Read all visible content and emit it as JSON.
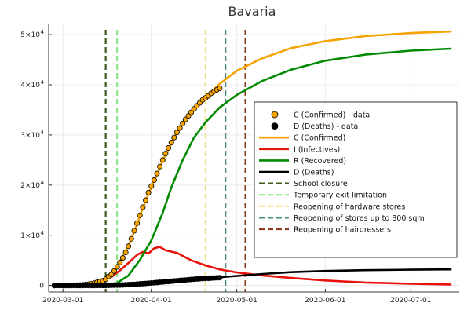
{
  "chart_data": {
    "type": "line",
    "title": "Bavaria",
    "xlabel": "",
    "ylabel": "",
    "grid": true,
    "legend_position": "right",
    "x_range": [
      "2020-02-25",
      "2020-07-18"
    ],
    "y_range": [
      -1300,
      52200
    ],
    "x_ticks": [
      {
        "date": "2020-03-01",
        "label": "2020-03-01"
      },
      {
        "date": "2020-04-01",
        "label": "2020-04-01"
      },
      {
        "date": "2020-05-01",
        "label": "2020-05-01"
      },
      {
        "date": "2020-06-01",
        "label": "2020-06-01"
      },
      {
        "date": "2020-07-01",
        "label": "2020-07-01"
      }
    ],
    "y_ticks": [
      {
        "value": 0,
        "mantissa": "0",
        "exponent": ""
      },
      {
        "value": 10000,
        "mantissa": "1×10",
        "exponent": "4"
      },
      {
        "value": 20000,
        "mantissa": "2×10",
        "exponent": "4"
      },
      {
        "value": 30000,
        "mantissa": "3×10",
        "exponent": "4"
      },
      {
        "value": 40000,
        "mantissa": "4×10",
        "exponent": "4"
      },
      {
        "value": 50000,
        "mantissa": "5×10",
        "exponent": "4"
      }
    ],
    "vlines": [
      {
        "name": "School closure",
        "date": "2020-03-16",
        "color": "#3d5a1e"
      },
      {
        "name": "Temporary exit limitation",
        "date": "2020-03-20",
        "color": "#8ee58a"
      },
      {
        "name": "Reopening of hardware stores",
        "date": "2020-04-20",
        "color": "#f0e08a"
      },
      {
        "name": "Reopening of stores up to 800 sqm",
        "date": "2020-04-27",
        "color": "#4a8a86"
      },
      {
        "name": "Reopening of hairdressers",
        "date": "2020-05-04",
        "color": "#8c3a22"
      }
    ],
    "scatter_series": [
      {
        "name": "C (Confirmed) - data",
        "color": "#f5a300",
        "points": [
          [
            "2020-02-27",
            0
          ],
          [
            "2020-02-28",
            0
          ],
          [
            "2020-02-29",
            0
          ],
          [
            "2020-03-01",
            0
          ],
          [
            "2020-03-02",
            5
          ],
          [
            "2020-03-03",
            10
          ],
          [
            "2020-03-04",
            20
          ],
          [
            "2020-03-05",
            40
          ],
          [
            "2020-03-06",
            60
          ],
          [
            "2020-03-07",
            90
          ],
          [
            "2020-03-08",
            130
          ],
          [
            "2020-03-09",
            180
          ],
          [
            "2020-03-10",
            250
          ],
          [
            "2020-03-11",
            350
          ],
          [
            "2020-03-12",
            450
          ],
          [
            "2020-03-13",
            650
          ],
          [
            "2020-03-14",
            800
          ],
          [
            "2020-03-15",
            950
          ],
          [
            "2020-03-16",
            1250
          ],
          [
            "2020-03-17",
            1800
          ],
          [
            "2020-03-18",
            2200
          ],
          [
            "2020-03-19",
            2900
          ],
          [
            "2020-03-20",
            3700
          ],
          [
            "2020-03-21",
            4600
          ],
          [
            "2020-03-22",
            5500
          ],
          [
            "2020-03-23",
            6600
          ],
          [
            "2020-03-24",
            7800
          ],
          [
            "2020-03-25",
            9300
          ],
          [
            "2020-03-26",
            10900
          ],
          [
            "2020-03-27",
            12400
          ],
          [
            "2020-03-28",
            14000
          ],
          [
            "2020-03-29",
            15600
          ],
          [
            "2020-03-30",
            17000
          ],
          [
            "2020-03-31",
            18500
          ],
          [
            "2020-04-01",
            19800
          ],
          [
            "2020-04-02",
            21000
          ],
          [
            "2020-04-03",
            22300
          ],
          [
            "2020-04-04",
            23700
          ],
          [
            "2020-04-05",
            25000
          ],
          [
            "2020-04-06",
            26300
          ],
          [
            "2020-04-07",
            27400
          ],
          [
            "2020-04-08",
            28500
          ],
          [
            "2020-04-09",
            29500
          ],
          [
            "2020-04-10",
            30500
          ],
          [
            "2020-04-11",
            31400
          ],
          [
            "2020-04-12",
            32300
          ],
          [
            "2020-04-13",
            33100
          ],
          [
            "2020-04-14",
            33800
          ],
          [
            "2020-04-15",
            34500
          ],
          [
            "2020-04-16",
            35200
          ],
          [
            "2020-04-17",
            35800
          ],
          [
            "2020-04-18",
            36400
          ],
          [
            "2020-04-19",
            37000
          ],
          [
            "2020-04-20",
            37400
          ],
          [
            "2020-04-21",
            37800
          ],
          [
            "2020-04-22",
            38300
          ],
          [
            "2020-04-23",
            38700
          ],
          [
            "2020-04-24",
            39000
          ],
          [
            "2020-04-25",
            39300
          ]
        ]
      },
      {
        "name": "D (Deaths) - data",
        "color": "#000000",
        "points": [
          [
            "2020-02-27",
            0
          ],
          [
            "2020-02-28",
            0
          ],
          [
            "2020-02-29",
            0
          ],
          [
            "2020-03-01",
            0
          ],
          [
            "2020-03-02",
            0
          ],
          [
            "2020-03-03",
            0
          ],
          [
            "2020-03-04",
            0
          ],
          [
            "2020-03-05",
            0
          ],
          [
            "2020-03-06",
            0
          ],
          [
            "2020-03-07",
            0
          ],
          [
            "2020-03-08",
            0
          ],
          [
            "2020-03-09",
            0
          ],
          [
            "2020-03-10",
            0
          ],
          [
            "2020-03-11",
            0
          ],
          [
            "2020-03-12",
            0
          ],
          [
            "2020-03-13",
            5
          ],
          [
            "2020-03-14",
            10
          ],
          [
            "2020-03-15",
            15
          ],
          [
            "2020-03-16",
            20
          ],
          [
            "2020-03-17",
            30
          ],
          [
            "2020-03-18",
            40
          ],
          [
            "2020-03-19",
            55
          ],
          [
            "2020-03-20",
            70
          ],
          [
            "2020-03-21",
            90
          ],
          [
            "2020-03-22",
            110
          ],
          [
            "2020-03-23",
            140
          ],
          [
            "2020-03-24",
            170
          ],
          [
            "2020-03-25",
            200
          ],
          [
            "2020-03-26",
            240
          ],
          [
            "2020-03-27",
            280
          ],
          [
            "2020-03-28",
            320
          ],
          [
            "2020-03-29",
            360
          ],
          [
            "2020-03-30",
            400
          ],
          [
            "2020-03-31",
            450
          ],
          [
            "2020-04-01",
            500
          ],
          [
            "2020-04-02",
            550
          ],
          [
            "2020-04-03",
            600
          ],
          [
            "2020-04-04",
            650
          ],
          [
            "2020-04-05",
            700
          ],
          [
            "2020-04-06",
            750
          ],
          [
            "2020-04-07",
            800
          ],
          [
            "2020-04-08",
            850
          ],
          [
            "2020-04-09",
            900
          ],
          [
            "2020-04-10",
            950
          ],
          [
            "2020-04-11",
            1000
          ],
          [
            "2020-04-12",
            1050
          ],
          [
            "2020-04-13",
            1100
          ],
          [
            "2020-04-14",
            1150
          ],
          [
            "2020-04-15",
            1200
          ],
          [
            "2020-04-16",
            1250
          ],
          [
            "2020-04-17",
            1300
          ],
          [
            "2020-04-18",
            1340
          ],
          [
            "2020-04-19",
            1380
          ],
          [
            "2020-04-20",
            1410
          ],
          [
            "2020-04-21",
            1440
          ],
          [
            "2020-04-22",
            1470
          ],
          [
            "2020-04-23",
            1500
          ],
          [
            "2020-04-24",
            1530
          ],
          [
            "2020-04-25",
            1560
          ]
        ]
      }
    ],
    "line_series": [
      {
        "name": "C (Confirmed)",
        "color": "#f5a300",
        "points": [
          [
            "2020-02-27",
            0
          ],
          [
            "2020-03-05",
            30
          ],
          [
            "2020-03-10",
            250
          ],
          [
            "2020-03-15",
            950
          ],
          [
            "2020-03-20",
            3600
          ],
          [
            "2020-03-25",
            9200
          ],
          [
            "2020-03-30",
            16900
          ],
          [
            "2020-04-05",
            24900
          ],
          [
            "2020-04-10",
            30400
          ],
          [
            "2020-04-15",
            34500
          ],
          [
            "2020-04-20",
            37500
          ],
          [
            "2020-04-25",
            40200
          ],
          [
            "2020-05-01",
            42800
          ],
          [
            "2020-05-10",
            45300
          ],
          [
            "2020-05-20",
            47300
          ],
          [
            "2020-06-01",
            48700
          ],
          [
            "2020-06-15",
            49700
          ],
          [
            "2020-07-01",
            50300
          ],
          [
            "2020-07-15",
            50600
          ]
        ]
      },
      {
        "name": "I (Infectives)",
        "color": "#e8140c",
        "points": [
          [
            "2020-02-27",
            0
          ],
          [
            "2020-03-05",
            30
          ],
          [
            "2020-03-10",
            240
          ],
          [
            "2020-03-15",
            900
          ],
          [
            "2020-03-18",
            1700
          ],
          [
            "2020-03-21",
            3000
          ],
          [
            "2020-03-24",
            4500
          ],
          [
            "2020-03-27",
            6100
          ],
          [
            "2020-03-29",
            6700
          ],
          [
            "2020-03-31",
            6400
          ],
          [
            "2020-04-02",
            7400
          ],
          [
            "2020-04-04",
            7700
          ],
          [
            "2020-04-06",
            7000
          ],
          [
            "2020-04-10",
            6500
          ],
          [
            "2020-04-15",
            5000
          ],
          [
            "2020-04-20",
            4000
          ],
          [
            "2020-04-25",
            3200
          ],
          [
            "2020-05-01",
            2600
          ],
          [
            "2020-05-10",
            2000
          ],
          [
            "2020-05-20",
            1500
          ],
          [
            "2020-06-01",
            1000
          ],
          [
            "2020-06-15",
            600
          ],
          [
            "2020-07-01",
            350
          ],
          [
            "2020-07-15",
            200
          ]
        ]
      },
      {
        "name": "R (Recovered)",
        "color": "#008a00",
        "points": [
          [
            "2020-02-27",
            0
          ],
          [
            "2020-03-10",
            10
          ],
          [
            "2020-03-15",
            50
          ],
          [
            "2020-03-20",
            500
          ],
          [
            "2020-03-24",
            2000
          ],
          [
            "2020-03-28",
            5100
          ],
          [
            "2020-04-01",
            9000
          ],
          [
            "2020-04-05",
            14500
          ],
          [
            "2020-04-08",
            19500
          ],
          [
            "2020-04-12",
            25000
          ],
          [
            "2020-04-16",
            29500
          ],
          [
            "2020-04-20",
            32500
          ],
          [
            "2020-04-25",
            35500
          ],
          [
            "2020-05-01",
            38000
          ],
          [
            "2020-05-10",
            40800
          ],
          [
            "2020-05-20",
            43000
          ],
          [
            "2020-06-01",
            44800
          ],
          [
            "2020-06-15",
            46000
          ],
          [
            "2020-07-01",
            46800
          ],
          [
            "2020-07-15",
            47200
          ]
        ]
      },
      {
        "name": "D (Deaths)",
        "color": "#000000",
        "points": [
          [
            "2020-02-27",
            0
          ],
          [
            "2020-03-15",
            15
          ],
          [
            "2020-03-20",
            70
          ],
          [
            "2020-03-25",
            200
          ],
          [
            "2020-04-01",
            500
          ],
          [
            "2020-04-10",
            950
          ],
          [
            "2020-04-20",
            1410
          ],
          [
            "2020-05-01",
            1900
          ],
          [
            "2020-05-10",
            2300
          ],
          [
            "2020-05-20",
            2650
          ],
          [
            "2020-06-01",
            2900
          ],
          [
            "2020-06-15",
            3050
          ],
          [
            "2020-07-01",
            3150
          ],
          [
            "2020-07-15",
            3200
          ]
        ]
      }
    ],
    "legend": [
      {
        "label": "C (Confirmed) - data",
        "kind": "marker",
        "color": "#f5a300"
      },
      {
        "label": "D (Deaths) - data",
        "kind": "marker",
        "color": "#000000"
      },
      {
        "label": "C (Confirmed)",
        "kind": "line",
        "color": "#f5a300"
      },
      {
        "label": "I (Infectives)",
        "kind": "line",
        "color": "#e8140c"
      },
      {
        "label": "R (Recovered)",
        "kind": "line",
        "color": "#008a00"
      },
      {
        "label": "D (Deaths)",
        "kind": "line",
        "color": "#000000"
      },
      {
        "label": "School closure",
        "kind": "dashed",
        "color": "#3d5a1e"
      },
      {
        "label": "Temporary exit limitation",
        "kind": "dashed",
        "color": "#8ee58a"
      },
      {
        "label": "Reopening of hardware stores",
        "kind": "dashed",
        "color": "#f0e08a"
      },
      {
        "label": "Reopening of stores up to 800 sqm",
        "kind": "dashed",
        "color": "#4a8a86"
      },
      {
        "label": "Reopening of hairdressers",
        "kind": "dashed",
        "color": "#8c3a22"
      }
    ]
  }
}
